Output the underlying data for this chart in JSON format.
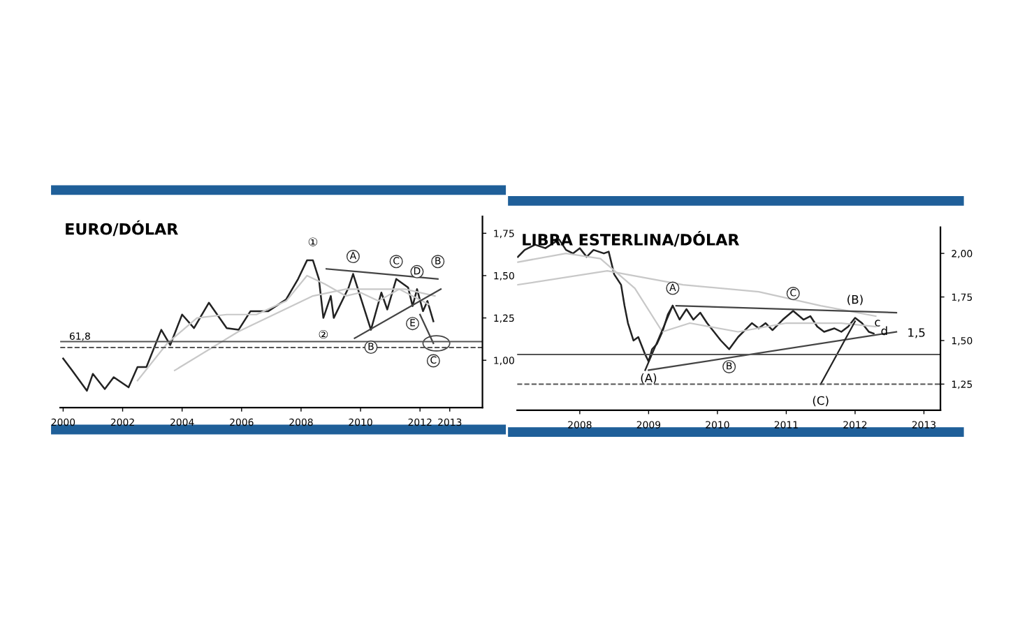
{
  "chart_data": [
    {
      "type": "line",
      "title": "EURO/DÓLAR",
      "xlim": [
        1999.9,
        2014.1
      ],
      "ylim": [
        0.72,
        1.85
      ],
      "xticks": [
        2000,
        2002,
        2004,
        2006,
        2008,
        2010,
        2012,
        2013
      ],
      "yticks": [
        {
          "value": 1.0,
          "label": "1,00"
        },
        {
          "value": 1.25,
          "label": "1,25"
        },
        {
          "value": 1.5,
          "label": "1,50"
        },
        {
          "value": 1.75,
          "label": "1,75"
        }
      ],
      "grid": false,
      "legend": false,
      "series": [
        {
          "color": "#222222",
          "x": [
            2000.0,
            2000.3,
            2000.8,
            2001.0,
            2001.4,
            2001.7,
            2002.2,
            2002.5,
            2002.8,
            2003.3,
            2003.6,
            2004.0,
            2004.4,
            2004.9,
            2005.5,
            2005.9,
            2006.3,
            2006.9,
            2007.5,
            2007.9,
            2008.2,
            2008.4,
            2008.6,
            2008.75,
            2009.0,
            2009.1,
            2009.6,
            2009.75,
            2010.35,
            2010.7,
            2010.9,
            2011.2,
            2011.6,
            2011.75,
            2011.9,
            2012.1,
            2012.25,
            2012.45
          ],
          "values": [
            1.01,
            0.94,
            0.82,
            0.92,
            0.83,
            0.9,
            0.84,
            0.96,
            0.96,
            1.18,
            1.09,
            1.27,
            1.19,
            1.34,
            1.19,
            1.18,
            1.29,
            1.29,
            1.36,
            1.48,
            1.59,
            1.59,
            1.48,
            1.25,
            1.38,
            1.25,
            1.43,
            1.51,
            1.18,
            1.4,
            1.3,
            1.48,
            1.43,
            1.32,
            1.42,
            1.29,
            1.35,
            1.23
          ]
        },
        {
          "color": "#c8c8c8",
          "x": [
            2002.5,
            2003.5,
            2004.5,
            2005.5,
            2006.5,
            2007.5,
            2008.2,
            2008.8,
            2009.5,
            2010.0,
            2010.6,
            2011.3,
            2012.3
          ],
          "values": [
            0.88,
            1.1,
            1.25,
            1.27,
            1.27,
            1.35,
            1.5,
            1.45,
            1.38,
            1.4,
            1.35,
            1.42,
            1.33
          ]
        },
        {
          "color": "#c8c8c8",
          "x": [
            2003.75,
            2005.9,
            2008.4,
            2009.5,
            2010.5,
            2011.5,
            2012.5
          ],
          "values": [
            0.94,
            1.17,
            1.38,
            1.42,
            1.42,
            1.42,
            1.38
          ]
        },
        {
          "color": "#444444",
          "x": [
            2008.85,
            2012.6
          ],
          "values": [
            1.54,
            1.48
          ]
        },
        {
          "color": "#444444",
          "x": [
            2009.8,
            2012.7
          ],
          "values": [
            1.13,
            1.42
          ]
        },
        {
          "color": "#444444",
          "x": [
            2012.0,
            2012.45
          ],
          "values": [
            1.27,
            1.1
          ]
        }
      ],
      "ref_lines": [
        {
          "axis": "y",
          "value": 1.11,
          "color": "#555555",
          "line_style": "solid"
        },
        {
          "axis": "y",
          "value": 1.075,
          "color": "#555555",
          "line_style": "dashed"
        }
      ],
      "annotations": [
        "61,8",
        {
          "text": "①",
          "x": 2008.4,
          "y": 1.59
        },
        {
          "text": "②",
          "x": 2008.75,
          "y": 1.25
        },
        {
          "text": "A",
          "x": 2009.75,
          "y": 1.51
        },
        {
          "text": "B",
          "x": 2010.35,
          "y": 1.18
        },
        {
          "text": "C",
          "x": 2011.2,
          "y": 1.48
        },
        {
          "text": "D",
          "x": 2011.9,
          "y": 1.42
        },
        {
          "text": "E",
          "x": 2011.75,
          "y": 1.32
        },
        {
          "text": "B",
          "x": 2012.6,
          "y": 1.48
        },
        {
          "text": "C",
          "x": 2012.45,
          "y": 1.1
        }
      ]
    },
    {
      "type": "line",
      "title": "LIBRA ESTERLINA/DÓLAR",
      "xlim": [
        2007.09,
        2013.24
      ],
      "ylim": [
        1.1,
        2.15
      ],
      "xticks": [
        2008,
        2009,
        2010,
        2011,
        2012,
        2013
      ],
      "yticks": [
        {
          "value": 1.25,
          "label": "1,25"
        },
        {
          "value": 1.5,
          "label": "1,50"
        },
        {
          "value": 1.75,
          "label": "1,75"
        },
        {
          "value": 2.0,
          "label": "2,00"
        }
      ],
      "grid": false,
      "legend": false,
      "series": [
        {
          "color": "#222222",
          "x": [
            2007.1,
            2007.2,
            2007.35,
            2007.5,
            2007.7,
            2007.8,
            2007.9,
            2008.0,
            2008.1,
            2008.2,
            2008.35,
            2008.42,
            2008.5,
            2008.6,
            2008.65,
            2008.7,
            2008.78,
            2008.85,
            2008.95,
            2009.0,
            2009.05,
            2009.12,
            2009.2,
            2009.28,
            2009.35,
            2009.45,
            2009.55,
            2009.65,
            2009.75,
            2009.85,
            2009.95,
            2010.05,
            2010.17,
            2010.3,
            2010.4,
            2010.5,
            2010.6,
            2010.7,
            2010.8,
            2010.95,
            2011.1,
            2011.25,
            2011.35,
            2011.45,
            2011.55,
            2011.7,
            2011.8,
            2011.9,
            2012.0,
            2012.1,
            2012.2,
            2012.27
          ],
          "values": [
            1.98,
            2.02,
            2.05,
            2.03,
            2.08,
            2.02,
            2.0,
            2.03,
            1.98,
            2.02,
            2.0,
            2.01,
            1.88,
            1.82,
            1.7,
            1.6,
            1.5,
            1.52,
            1.42,
            1.38,
            1.45,
            1.48,
            1.55,
            1.65,
            1.7,
            1.62,
            1.68,
            1.62,
            1.66,
            1.6,
            1.55,
            1.5,
            1.45,
            1.52,
            1.56,
            1.6,
            1.57,
            1.6,
            1.56,
            1.62,
            1.67,
            1.62,
            1.64,
            1.58,
            1.55,
            1.57,
            1.55,
            1.58,
            1.63,
            1.6,
            1.55,
            1.54
          ]
        },
        {
          "color": "#c8c8c8",
          "x": [
            2007.1,
            2007.8,
            2008.3,
            2008.8,
            2009.2,
            2009.6,
            2010.3,
            2011.0,
            2011.8,
            2012.3
          ],
          "values": [
            1.95,
            2.0,
            1.97,
            1.8,
            1.55,
            1.6,
            1.55,
            1.6,
            1.6,
            1.58
          ]
        },
        {
          "color": "#c8c8c8",
          "x": [
            2007.1,
            2008.4,
            2009.5,
            2010.6,
            2011.5,
            2012.3
          ],
          "values": [
            1.82,
            1.9,
            1.82,
            1.78,
            1.7,
            1.64
          ]
        },
        {
          "color": "#444444",
          "x": [
            2009.0,
            2012.6
          ],
          "values": [
            1.33,
            1.55
          ]
        },
        {
          "color": "#444444",
          "x": [
            2009.4,
            2012.6
          ],
          "values": [
            1.7,
            1.66
          ]
        },
        {
          "color": "#222222",
          "x": [
            2008.95,
            2009.35
          ],
          "values": [
            1.33,
            1.7
          ]
        },
        {
          "color": "#222222",
          "x": [
            2011.5,
            2012.0
          ],
          "values": [
            1.25,
            1.61
          ]
        }
      ],
      "ref_lines": [
        {
          "axis": "y",
          "value": 1.42,
          "color": "#555555",
          "line_style": "solid"
        },
        {
          "axis": "y",
          "value": 1.25,
          "color": "#555555",
          "line_style": "dashed"
        }
      ],
      "annotations": [
        {
          "text": "(A)",
          "x": 2009.0,
          "y": 1.38
        },
        {
          "text": "A",
          "x": 2009.35,
          "y": 1.7
        },
        {
          "text": "B",
          "x": 2010.17,
          "y": 1.45
        },
        {
          "text": "C",
          "x": 2011.1,
          "y": 1.67
        },
        {
          "text": "(B)",
          "x": 2012.0,
          "y": 1.63
        },
        {
          "text": "(C)",
          "x": 2011.5,
          "y": 1.25
        },
        {
          "text": "c",
          "x": 2012.1,
          "y": 1.6
        },
        {
          "text": "d",
          "x": 2012.2,
          "y": 1.55
        },
        {
          "text": "1,5",
          "x": 2012.27,
          "y": 1.54
        }
      ]
    }
  ]
}
